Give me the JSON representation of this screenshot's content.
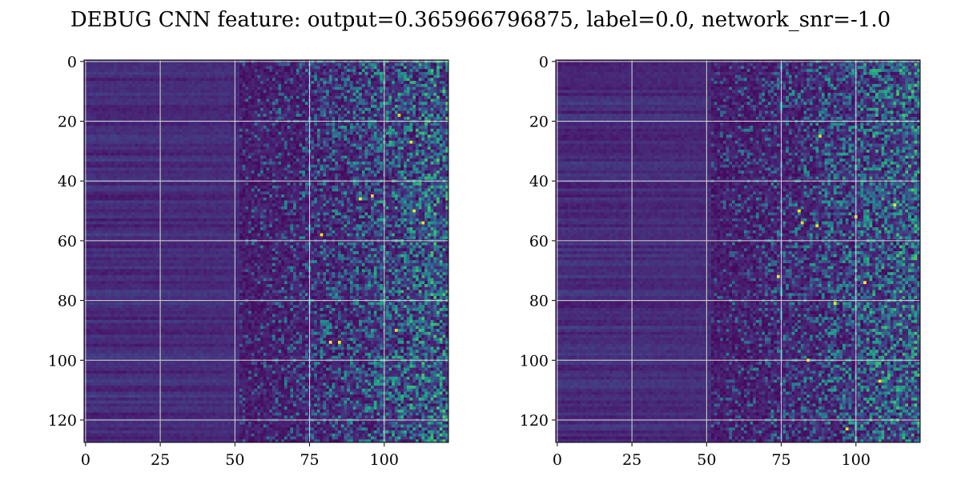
{
  "figure": {
    "title": "DEBUG CNN feature: output=0.365966796875, label=0.0, network_snr=-1.0"
  },
  "chart_data": [
    {
      "type": "heatmap",
      "title": "",
      "xlabel": "",
      "ylabel": "",
      "colormap": "viridis",
      "grid": true,
      "rows": 128,
      "cols": 122,
      "x_ticks": [
        0,
        25,
        50,
        75,
        100
      ],
      "y_ticks": [
        0,
        20,
        40,
        60,
        80,
        100,
        120
      ],
      "xlim": [
        -0.5,
        121.5
      ],
      "ylim": [
        127.5,
        -0.5
      ],
      "value_range": [
        0,
        1
      ],
      "seed": 11,
      "hot_spots": [
        [
          109,
          27
        ],
        [
          105,
          18
        ],
        [
          82,
          94
        ],
        [
          85,
          94
        ],
        [
          104,
          90
        ],
        [
          96,
          45
        ],
        [
          92,
          46
        ],
        [
          110,
          50
        ],
        [
          79,
          58
        ],
        [
          113,
          54
        ]
      ]
    },
    {
      "type": "heatmap",
      "title": "",
      "xlabel": "",
      "ylabel": "",
      "colormap": "viridis",
      "grid": true,
      "rows": 128,
      "cols": 122,
      "x_ticks": [
        0,
        25,
        50,
        75,
        100
      ],
      "y_ticks": [
        0,
        20,
        40,
        60,
        80,
        100,
        120
      ],
      "xlim": [
        -0.5,
        121.5
      ],
      "ylim": [
        127.5,
        -0.5
      ],
      "value_range": [
        0,
        1
      ],
      "seed": 29,
      "hot_spots": [
        [
          88,
          25
        ],
        [
          81,
          50
        ],
        [
          87,
          55
        ],
        [
          100,
          52
        ],
        [
          113,
          48
        ],
        [
          103,
          74
        ],
        [
          84,
          100
        ],
        [
          108,
          107
        ],
        [
          97,
          123
        ],
        [
          74,
          72
        ],
        [
          82,
          54
        ],
        [
          93,
          81
        ]
      ]
    }
  ],
  "colors": {
    "viridis": [
      "#440154",
      "#482475",
      "#414487",
      "#355f8d",
      "#2a788e",
      "#21918c",
      "#22a884",
      "#44bf70",
      "#7ad151",
      "#bddf26",
      "#fde725"
    ],
    "grid": "#d9d9d9",
    "axis": "#000000",
    "background": "#ffffff"
  }
}
